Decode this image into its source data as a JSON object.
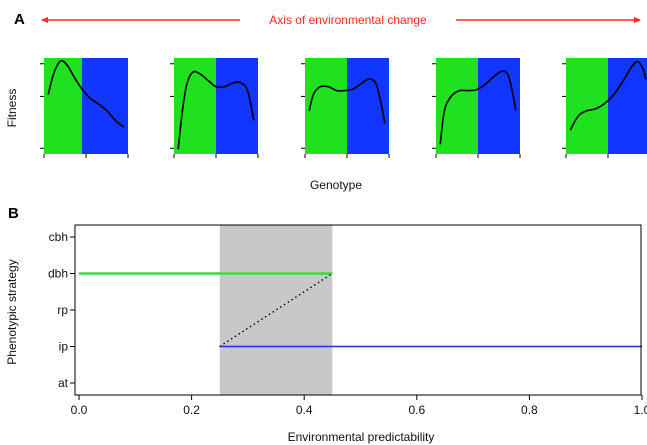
{
  "panel_a": {
    "label": "A",
    "env_axis_label": "Axis of environmental change",
    "ylabel": "Fitness",
    "xlabel": "Genotype",
    "colors": {
      "arrow": "#ff2a1f",
      "left_env": "#1fe11f",
      "right_env": "#1036ff",
      "curve": "#000000"
    }
  },
  "panel_b": {
    "label": "B",
    "colors": {
      "high_line": "#3dd93d",
      "low_line": "#1f2ee0",
      "shade": "#c8c8c8",
      "connector": "#000000"
    }
  },
  "chart_data": [
    {
      "type": "line",
      "panel": "A",
      "description_units": "fitness vs genotype; each small multiple is one environment along the axis of environmental change",
      "xlabel": "Genotype",
      "ylabel": "Fitness",
      "xlim": [
        0,
        1
      ],
      "ylim": [
        0,
        1
      ],
      "env_boundaries": [
        0.45,
        0.5,
        0.5,
        0.5,
        0.5
      ],
      "curves": [
        {
          "x": [
            0.05,
            0.12,
            0.2,
            0.28,
            0.36,
            0.45,
            0.55,
            0.65,
            0.75,
            0.85,
            0.95
          ],
          "y": [
            0.62,
            0.85,
            0.97,
            0.92,
            0.8,
            0.68,
            0.58,
            0.52,
            0.45,
            0.35,
            0.28
          ]
        },
        {
          "x": [
            0.05,
            0.1,
            0.15,
            0.22,
            0.3,
            0.4,
            0.5,
            0.6,
            0.7,
            0.8,
            0.88,
            0.95
          ],
          "y": [
            0.05,
            0.45,
            0.72,
            0.85,
            0.84,
            0.77,
            0.7,
            0.7,
            0.74,
            0.74,
            0.65,
            0.35
          ]
        },
        {
          "x": [
            0.05,
            0.1,
            0.18,
            0.28,
            0.38,
            0.48,
            0.58,
            0.68,
            0.76,
            0.84,
            0.9,
            0.95
          ],
          "y": [
            0.45,
            0.62,
            0.7,
            0.7,
            0.66,
            0.66,
            0.68,
            0.74,
            0.78,
            0.74,
            0.55,
            0.32
          ]
        },
        {
          "x": [
            0.05,
            0.1,
            0.18,
            0.28,
            0.38,
            0.48,
            0.58,
            0.68,
            0.78,
            0.86,
            0.92,
            0.95
          ],
          "y": [
            0.1,
            0.45,
            0.6,
            0.66,
            0.66,
            0.67,
            0.72,
            0.8,
            0.86,
            0.82,
            0.6,
            0.45
          ]
        },
        {
          "x": [
            0.05,
            0.15,
            0.25,
            0.35,
            0.45,
            0.55,
            0.65,
            0.72,
            0.8,
            0.86,
            0.92,
            0.95
          ],
          "y": [
            0.25,
            0.4,
            0.45,
            0.47,
            0.52,
            0.6,
            0.72,
            0.82,
            0.93,
            0.96,
            0.88,
            0.78
          ]
        }
      ]
    },
    {
      "type": "line",
      "panel": "B",
      "xlabel": "Environmental predictability",
      "ylabel": "Phenotypic strategy",
      "xlim": [
        0,
        1
      ],
      "x_ticks": [
        "0.0",
        "0.2",
        "0.4",
        "0.6",
        "0.8",
        "1.0"
      ],
      "x_tick_values": [
        0,
        0.2,
        0.4,
        0.6,
        0.8,
        1.0
      ],
      "y_categories": [
        "at",
        "ip",
        "rp",
        "dbh",
        "cbh"
      ],
      "shaded_region": [
        0.25,
        0.45
      ],
      "series": [
        {
          "category": "dbh",
          "x": [
            0.0,
            0.45
          ]
        },
        {
          "category": "ip",
          "x": [
            0.25,
            1.0
          ]
        }
      ],
      "connector": {
        "from": {
          "x": 0.25,
          "y": "ip"
        },
        "to": {
          "x": 0.45,
          "y": "dbh"
        },
        "style": "dotted"
      }
    }
  ]
}
